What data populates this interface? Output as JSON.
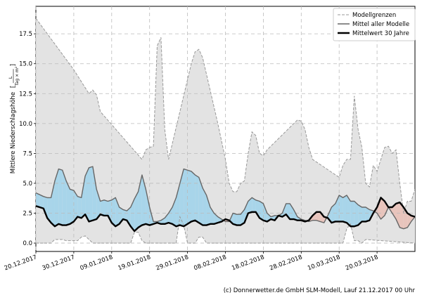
{
  "chart_data": {
    "type": "area",
    "ylabel": "Mittlere Niederschlagshöhe [L/(Tag × m²)]",
    "ylabel_main": "Mittlere Niederschlagshöhe",
    "ylabel_unit_prefix": "[",
    "ylabel_unit_num": "L",
    "ylabel_unit_den": "Tag × m²",
    "ylabel_unit_suffix": "]",
    "ylim": [
      -0.7,
      19.8
    ],
    "yticks": [
      0.0,
      2.5,
      5.0,
      7.5,
      10.0,
      12.5,
      15.0,
      17.5
    ],
    "ytick_labels": [
      "0.0",
      "2.5",
      "5.0",
      "7.5",
      "10.0",
      "12.5",
      "15.0",
      "17.5"
    ],
    "x_start": "2017-12-20",
    "x_end": "2018-03-30",
    "xticks": [
      "2017-12-20",
      "2017-12-30",
      "2018-01-09",
      "2018-01-19",
      "2018-01-29",
      "2018-02-08",
      "2018-02-18",
      "2018-02-28",
      "2018-03-10",
      "2018-03-20"
    ],
    "xtick_labels": [
      "20.12.2017",
      "30.12.2017",
      "09.01.2018",
      "19.01.2018",
      "29.01.2018",
      "08.02.2018",
      "18.02.2018",
      "28.02.2018",
      "10.03.2018",
      "20.03.2018"
    ],
    "grid": true,
    "legend_position": "top-right",
    "legend": [
      {
        "label": "Modellgrenzen",
        "style": "dashed",
        "color": "#999999"
      },
      {
        "label": "Mittel aller Modelle",
        "style": "solid",
        "color": "#666666"
      },
      {
        "label": "Mittelwert 30 Jahre",
        "style": "solid-bold",
        "color": "#000000"
      }
    ],
    "colors": {
      "envelope": "#e3e3e3",
      "above_climate": "#a8d5ea",
      "below_climate": "#e8c4bc",
      "model_mean": "#666666",
      "climate_mean": "#000000",
      "bounds": "#999999"
    },
    "series": [
      {
        "name": "Modellgrenzen",
        "role": "upper",
        "x": [
          "2017-12-20",
          "2017-12-30",
          "2018-01-03",
          "2018-01-04",
          "2018-01-05",
          "2018-01-06",
          "2018-01-17",
          "2018-01-18",
          "2018-01-19",
          "2018-01-20",
          "2018-01-21",
          "2018-01-22",
          "2018-01-23",
          "2018-01-24",
          "2018-01-30",
          "2018-01-31",
          "2018-02-01",
          "2018-02-02",
          "2018-02-06",
          "2018-02-08",
          "2018-02-09",
          "2018-02-10",
          "2018-02-11",
          "2018-02-12",
          "2018-02-13",
          "2018-02-14",
          "2018-02-15",
          "2018-02-16",
          "2018-02-17",
          "2018-02-18",
          "2018-02-19",
          "2018-02-27",
          "2018-02-28",
          "2018-03-01",
          "2018-03-02",
          "2018-03-03",
          "2018-03-10",
          "2018-03-11",
          "2018-03-12",
          "2018-03-13",
          "2018-03-14",
          "2018-03-15",
          "2018-03-16",
          "2018-03-17",
          "2018-03-18",
          "2018-03-19",
          "2018-03-20",
          "2018-03-21",
          "2018-03-22",
          "2018-03-23",
          "2018-03-24",
          "2018-03-25",
          "2018-03-26",
          "2018-03-27",
          "2018-03-28",
          "2018-03-29",
          "2018-03-30"
        ],
        "y": [
          18.8,
          14.5,
          12.5,
          12.8,
          12.4,
          11.0,
          7.0,
          7.8,
          8.0,
          8.1,
          16.5,
          17.2,
          9.5,
          7.0,
          15.0,
          16.0,
          16.2,
          15.5,
          10.0,
          7.0,
          5.0,
          4.3,
          4.3,
          5.0,
          5.2,
          7.5,
          9.3,
          9.0,
          7.5,
          7.3,
          7.8,
          10.3,
          10.2,
          9.5,
          8.0,
          7.0,
          5.5,
          6.5,
          7.0,
          7.0,
          12.3,
          9.5,
          8.0,
          5.0,
          4.7,
          6.5,
          6.0,
          7.0,
          8.0,
          8.1,
          7.5,
          7.8,
          5.0,
          2.5,
          3.5,
          3.5,
          4.5
        ]
      },
      {
        "name": "Modellgrenzen",
        "role": "lower",
        "x": [
          "2017-12-20",
          "2017-12-24",
          "2017-12-25",
          "2017-12-27",
          "2017-12-28",
          "2017-12-31",
          "2018-01-01",
          "2018-01-02",
          "2018-01-04",
          "2018-01-14",
          "2018-01-15",
          "2018-01-16",
          "2018-01-17",
          "2018-01-18",
          "2018-01-26",
          "2018-01-27",
          "2018-01-28",
          "2018-01-29",
          "2018-01-31",
          "2018-02-01",
          "2018-02-02",
          "2018-02-03",
          "2018-03-11",
          "2018-03-12",
          "2018-03-13",
          "2018-03-14",
          "2018-03-15",
          "2018-03-16",
          "2018-03-17",
          "2018-03-30"
        ],
        "y": [
          0.0,
          0.0,
          0.3,
          0.3,
          0.2,
          0.2,
          0.5,
          0.6,
          0.0,
          0.0,
          0.9,
          0.9,
          0.2,
          0.0,
          0.0,
          2.2,
          1.5,
          0.0,
          0.0,
          0.5,
          0.5,
          0.0,
          0.0,
          1.2,
          1.6,
          0.2,
          0.2,
          0.0,
          0.3,
          0.0
        ]
      },
      {
        "name": "Mittel aller Modelle",
        "x": [
          "2017-12-20",
          "2017-12-22",
          "2017-12-23",
          "2017-12-24",
          "2017-12-25",
          "2017-12-26",
          "2017-12-27",
          "2017-12-28",
          "2017-12-29",
          "2017-12-30",
          "2017-12-31",
          "2018-01-01",
          "2018-01-02",
          "2018-01-03",
          "2018-01-04",
          "2018-01-05",
          "2018-01-06",
          "2018-01-07",
          "2018-01-08",
          "2018-01-09",
          "2018-01-10",
          "2018-01-11",
          "2018-01-12",
          "2018-01-13",
          "2018-01-14",
          "2018-01-15",
          "2018-01-16",
          "2018-01-17",
          "2018-01-18",
          "2018-01-19",
          "2018-01-20",
          "2018-01-21",
          "2018-01-22",
          "2018-01-23",
          "2018-01-24",
          "2018-01-25",
          "2018-01-26",
          "2018-01-27",
          "2018-01-28",
          "2018-01-29",
          "2018-01-30",
          "2018-01-31",
          "2018-02-01",
          "2018-02-02",
          "2018-02-03",
          "2018-02-04",
          "2018-02-05",
          "2018-02-06",
          "2018-02-07",
          "2018-02-08",
          "2018-02-09",
          "2018-02-10",
          "2018-02-11",
          "2018-02-12",
          "2018-02-13",
          "2018-02-14",
          "2018-02-15",
          "2018-02-16",
          "2018-02-17",
          "2018-02-18",
          "2018-02-19",
          "2018-02-20",
          "2018-02-21",
          "2018-02-22",
          "2018-02-23",
          "2018-02-24",
          "2018-02-25",
          "2018-02-26",
          "2018-02-27",
          "2018-02-28",
          "2018-03-01",
          "2018-03-02",
          "2018-03-03",
          "2018-03-04",
          "2018-03-05",
          "2018-03-06",
          "2018-03-07",
          "2018-03-08",
          "2018-03-09",
          "2018-03-10",
          "2018-03-11",
          "2018-03-12",
          "2018-03-13",
          "2018-03-14",
          "2018-03-15",
          "2018-03-16",
          "2018-03-17",
          "2018-03-18",
          "2018-03-19",
          "2018-03-20",
          "2018-03-21",
          "2018-03-22",
          "2018-03-23",
          "2018-03-24",
          "2018-03-25",
          "2018-03-26",
          "2018-03-27",
          "2018-03-28",
          "2018-03-29",
          "2018-03-30"
        ],
        "y": [
          4.2,
          3.9,
          3.8,
          3.8,
          5.2,
          6.2,
          6.1,
          5.2,
          4.5,
          4.4,
          3.9,
          3.8,
          5.6,
          6.3,
          6.4,
          4.5,
          3.5,
          3.6,
          3.5,
          3.6,
          3.8,
          3.0,
          2.8,
          2.7,
          3.0,
          3.7,
          4.3,
          5.7,
          4.5,
          3.0,
          1.8,
          1.8,
          1.9,
          2.1,
          2.5,
          3.0,
          3.8,
          5.0,
          6.2,
          6.1,
          6.0,
          5.7,
          5.5,
          4.6,
          4.0,
          3.0,
          2.5,
          2.2,
          2.0,
          1.8,
          1.8,
          2.5,
          2.4,
          2.4,
          2.8,
          3.5,
          3.8,
          3.6,
          3.5,
          3.3,
          2.5,
          2.2,
          2.3,
          2.3,
          2.5,
          3.3,
          3.3,
          2.8,
          2.2,
          2.0,
          1.9,
          1.8,
          1.9,
          1.9,
          1.8,
          1.7,
          2.3,
          3.0,
          3.3,
          4.0,
          3.8,
          4.0,
          3.5,
          3.5,
          3.2,
          3.0,
          3.0,
          2.8,
          2.7,
          2.5,
          2.0,
          2.3,
          3.0,
          2.5,
          2.0,
          1.3,
          1.2,
          1.3,
          1.8,
          2.2
        ]
      },
      {
        "name": "Mittelwert 30 Jahre",
        "x": [
          "2017-12-20",
          "2017-12-21",
          "2017-12-22",
          "2017-12-23",
          "2017-12-24",
          "2017-12-25",
          "2017-12-26",
          "2017-12-27",
          "2017-12-28",
          "2017-12-29",
          "2017-12-30",
          "2017-12-31",
          "2018-01-01",
          "2018-01-02",
          "2018-01-03",
          "2018-01-04",
          "2018-01-05",
          "2018-01-06",
          "2018-01-07",
          "2018-01-08",
          "2018-01-09",
          "2018-01-10",
          "2018-01-11",
          "2018-01-12",
          "2018-01-13",
          "2018-01-14",
          "2018-01-15",
          "2018-01-16",
          "2018-01-17",
          "2018-01-18",
          "2018-01-19",
          "2018-01-20",
          "2018-01-21",
          "2018-01-22",
          "2018-01-23",
          "2018-01-24",
          "2018-01-25",
          "2018-01-26",
          "2018-01-27",
          "2018-01-28",
          "2018-01-29",
          "2018-01-30",
          "2018-01-31",
          "2018-02-01",
          "2018-02-02",
          "2018-02-03",
          "2018-02-04",
          "2018-02-05",
          "2018-02-06",
          "2018-02-07",
          "2018-02-08",
          "2018-02-09",
          "2018-02-10",
          "2018-02-11",
          "2018-02-12",
          "2018-02-13",
          "2018-02-14",
          "2018-02-15",
          "2018-02-16",
          "2018-02-17",
          "2018-02-18",
          "2018-02-19",
          "2018-02-20",
          "2018-02-21",
          "2018-02-22",
          "2018-02-23",
          "2018-02-24",
          "2018-02-25",
          "2018-02-26",
          "2018-02-27",
          "2018-02-28",
          "2018-03-01",
          "2018-03-02",
          "2018-03-03",
          "2018-03-04",
          "2018-03-05",
          "2018-03-06",
          "2018-03-07",
          "2018-03-08",
          "2018-03-09",
          "2018-03-10",
          "2018-03-11",
          "2018-03-12",
          "2018-03-13",
          "2018-03-14",
          "2018-03-15",
          "2018-03-16",
          "2018-03-17",
          "2018-03-18",
          "2018-03-19",
          "2018-03-20",
          "2018-03-21",
          "2018-03-22",
          "2018-03-23",
          "2018-03-24",
          "2018-03-25",
          "2018-03-26",
          "2018-03-27",
          "2018-03-28",
          "2018-03-29",
          "2018-03-30"
        ],
        "y": [
          3.1,
          3.0,
          2.9,
          2.1,
          1.7,
          1.4,
          1.6,
          1.5,
          1.5,
          1.6,
          1.8,
          2.2,
          2.1,
          2.4,
          1.8,
          1.9,
          2.0,
          2.4,
          2.3,
          2.3,
          1.7,
          1.4,
          1.6,
          2.0,
          1.9,
          1.4,
          1.0,
          1.3,
          1.5,
          1.6,
          1.5,
          1.6,
          1.7,
          1.6,
          1.6,
          1.7,
          1.6,
          1.4,
          1.5,
          1.4,
          1.6,
          1.8,
          1.9,
          1.7,
          1.5,
          1.5,
          1.6,
          1.6,
          1.7,
          1.8,
          2.0,
          1.9,
          1.6,
          1.5,
          1.5,
          1.7,
          2.5,
          2.6,
          2.6,
          2.1,
          1.9,
          1.8,
          2.0,
          1.9,
          2.3,
          2.2,
          2.4,
          2.0,
          2.0,
          1.9,
          1.9,
          1.8,
          1.9,
          2.3,
          2.6,
          2.6,
          2.2,
          2.1,
          1.7,
          1.8,
          1.8,
          1.8,
          1.7,
          1.4,
          1.4,
          1.5,
          1.8,
          1.8,
          1.9,
          2.5,
          3.0,
          3.8,
          3.5,
          3.0,
          3.0,
          3.3,
          3.4,
          3.0,
          2.5,
          2.3,
          2.2
        ]
      }
    ]
  },
  "footer": "(c) Donnerwetter.de GmbH SLM-Modell, Lauf 21.12.2017 00 Uhr"
}
